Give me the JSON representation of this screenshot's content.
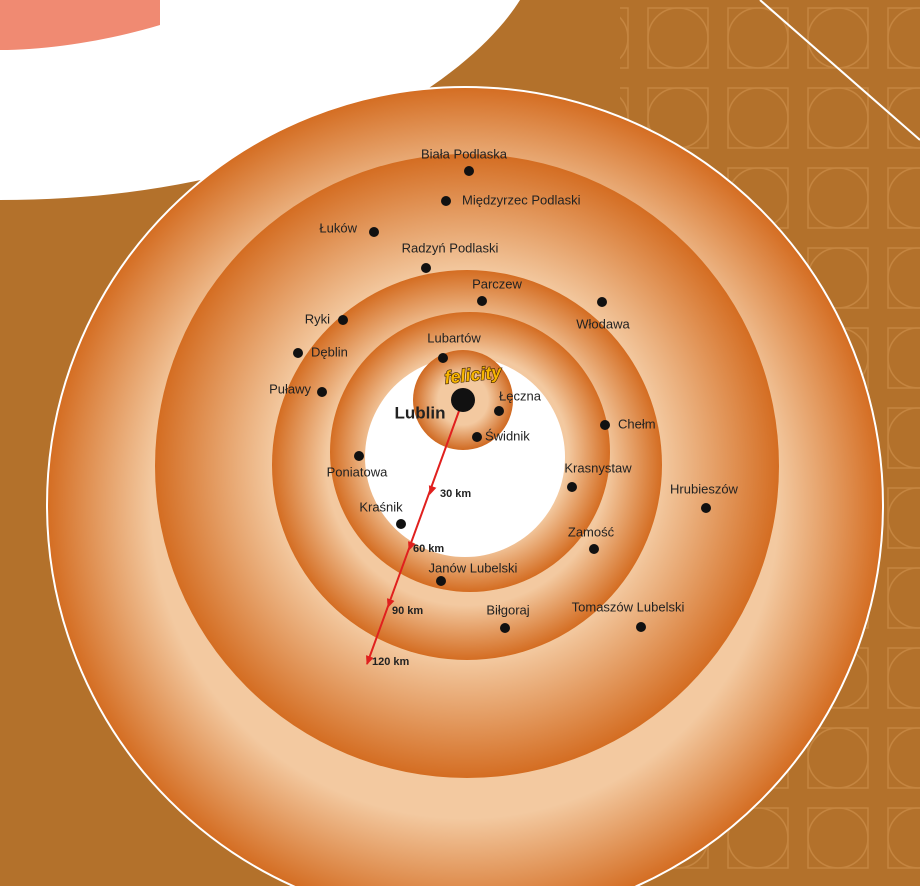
{
  "map": {
    "center": "Lublin",
    "logo": "felicity",
    "cities": [
      "Biała Podlaska",
      "Międzyrzec Podlaski",
      "Łuków",
      "Radzyń Podlaski",
      "Parczew",
      "Włodawa",
      "Ryki",
      "Dęblin",
      "Lubartów",
      "Puławy",
      "Łęczna",
      "Świdnik",
      "Chełm",
      "Poniatowa",
      "Krasnystaw",
      "Hrubieszów",
      "Kraśnik",
      "Zamość",
      "Janów Lubelski",
      "Biłgoraj",
      "Tomaszów Lubelski"
    ],
    "distances": [
      "30 km",
      "60 km",
      "90 km",
      "120 km"
    ]
  }
}
